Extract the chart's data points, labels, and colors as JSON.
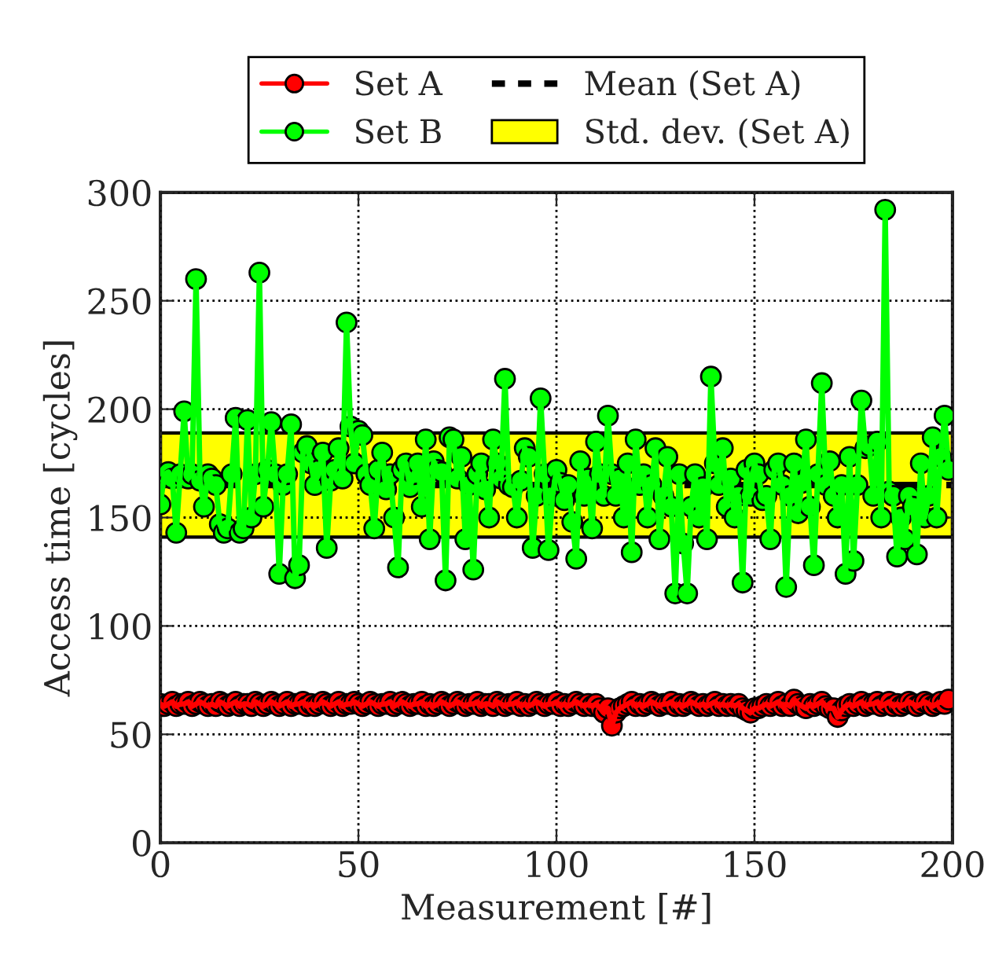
{
  "chart_data": {
    "type": "line",
    "xlabel": "Measurement [#]",
    "ylabel": "Access time [cycles]",
    "x": [
      0,
      1,
      2,
      3,
      4,
      5,
      6,
      7,
      8,
      9,
      10,
      11,
      12,
      13,
      14,
      15,
      16,
      17,
      18,
      19,
      20,
      21,
      22,
      23,
      24,
      25,
      26,
      27,
      28,
      29,
      30,
      31,
      32,
      33,
      34,
      35,
      36,
      37,
      38,
      39,
      40,
      41,
      42,
      43,
      44,
      45,
      46,
      47,
      48,
      49,
      50,
      51,
      52,
      53,
      54,
      55,
      56,
      57,
      58,
      59,
      60,
      61,
      62,
      63,
      64,
      65,
      66,
      67,
      68,
      69,
      70,
      71,
      72,
      73,
      74,
      75,
      76,
      77,
      78,
      79,
      80,
      81,
      82,
      83,
      84,
      85,
      86,
      87,
      88,
      89,
      90,
      91,
      92,
      93,
      94,
      95,
      96,
      97,
      98,
      99,
      100,
      101,
      102,
      103,
      104,
      105,
      106,
      107,
      108,
      109,
      110,
      111,
      112,
      113,
      114,
      115,
      116,
      117,
      118,
      119,
      120,
      121,
      122,
      123,
      124,
      125,
      126,
      127,
      128,
      129,
      130,
      131,
      132,
      133,
      134,
      135,
      136,
      137,
      138,
      139,
      140,
      141,
      142,
      143,
      144,
      145,
      146,
      147,
      148,
      149,
      150,
      151,
      152,
      153,
      154,
      155,
      156,
      157,
      158,
      159,
      160,
      161,
      162,
      163,
      164,
      165,
      166,
      167,
      168,
      169,
      170,
      171,
      172,
      173,
      174,
      175,
      176,
      177,
      178,
      179,
      180,
      181,
      182,
      183,
      184,
      185,
      186,
      187,
      188,
      189,
      190,
      191,
      192,
      193,
      194,
      195,
      196,
      197,
      198,
      199
    ],
    "series": [
      {
        "name": "Set A",
        "color": "#ff0000",
        "values": [
          64,
          63,
          64,
          65,
          63,
          64,
          64,
          65,
          63,
          64,
          65,
          64,
          63,
          64,
          63,
          65,
          64,
          63,
          64,
          65,
          63,
          64,
          64,
          63,
          65,
          64,
          63,
          64,
          65,
          64,
          63,
          64,
          65,
          63,
          64,
          64,
          65,
          63,
          64,
          63,
          64,
          65,
          64,
          63,
          64,
          65,
          63,
          64,
          64,
          65,
          64,
          63,
          64,
          65,
          64,
          63,
          64,
          64,
          65,
          63,
          64,
          65,
          64,
          63,
          64,
          64,
          65,
          63,
          64,
          63,
          64,
          65,
          64,
          63,
          64,
          65,
          64,
          63,
          64,
          64,
          65,
          63,
          64,
          64,
          63,
          65,
          64,
          63,
          64,
          64,
          65,
          63,
          64,
          63,
          64,
          65,
          64,
          63,
          64,
          64,
          65,
          63,
          64,
          63,
          64,
          65,
          64,
          63,
          64,
          63,
          64,
          62,
          60,
          62,
          54,
          60,
          62,
          63,
          64,
          65,
          63,
          64,
          63,
          64,
          65,
          64,
          63,
          64,
          64,
          65,
          63,
          64,
          63,
          64,
          65,
          64,
          63,
          64,
          63,
          64,
          65,
          63,
          64,
          63,
          64,
          63,
          64,
          62,
          61,
          60,
          62,
          62,
          63,
          64,
          63,
          64,
          65,
          63,
          64,
          63,
          66,
          64,
          63,
          62,
          64,
          63,
          64,
          65,
          63,
          62,
          62,
          58,
          61,
          63,
          64,
          63,
          64,
          65,
          63,
          64,
          64,
          65,
          63,
          64,
          65,
          63,
          64,
          63,
          64,
          65,
          64,
          63,
          64,
          65,
          64,
          63,
          64,
          65,
          64,
          66
        ]
      },
      {
        "name": "Set B",
        "color": "#00ff00",
        "values": [
          156,
          170,
          171,
          168,
          143,
          170,
          199,
          168,
          170,
          260,
          167,
          155,
          170,
          168,
          165,
          147,
          143,
          145,
          170,
          196,
          143,
          145,
          195,
          150,
          170,
          263,
          155,
          172,
          194,
          170,
          124,
          165,
          170,
          193,
          122,
          128,
          180,
          183,
          175,
          165,
          172,
          180,
          136,
          167,
          172,
          182,
          168,
          240,
          192,
          175,
          190,
          188,
          170,
          165,
          145,
          172,
          180,
          163,
          170,
          150,
          127,
          172,
          175,
          164,
          170,
          175,
          155,
          186,
          140,
          176,
          172,
          171,
          121,
          187,
          186,
          168,
          178,
          140,
          165,
          126,
          170,
          175,
          163,
          150,
          186,
          175,
          168,
          214,
          165,
          164,
          150,
          167,
          182,
          178,
          136,
          160,
          205,
          170,
          135,
          160,
          172,
          166,
          158,
          165,
          148,
          131,
          176,
          160,
          168,
          145,
          185,
          170,
          160,
          197,
          170,
          160,
          168,
          150,
          175,
          134,
          186,
          165,
          170,
          150,
          165,
          182,
          140,
          160,
          178,
          155,
          115,
          170,
          138,
          115,
          155,
          170,
          150,
          164,
          140,
          215,
          175,
          165,
          182,
          155,
          168,
          150,
          160,
          120,
          172,
          160,
          175,
          170,
          158,
          160,
          140,
          172,
          175,
          165,
          118,
          160,
          175,
          152,
          166,
          186,
          155,
          128,
          170,
          212,
          165,
          176,
          160,
          150,
          165,
          124,
          178,
          130,
          165,
          204,
          182,
          183,
          160,
          185,
          150,
          292,
          162,
          160,
          132,
          150,
          140,
          160,
          155,
          133,
          175,
          150,
          160,
          187,
          150,
          178,
          197,
          172
        ]
      }
    ],
    "ref_lines": [
      {
        "axis": "y",
        "value": 165,
        "label": "Mean (Set A)",
        "color": "#000000",
        "line_style": "dashed"
      }
    ],
    "bands": [
      {
        "axis": "y",
        "from": 141,
        "to": 189,
        "label": "Std. dev. (Set A)",
        "color": "#ffff00"
      }
    ],
    "xlim": [
      0,
      200
    ],
    "xticks": [
      0,
      50,
      100,
      150,
      200
    ],
    "ylim": [
      0,
      300
    ],
    "yticks": [
      0,
      50,
      100,
      150,
      200,
      250,
      300
    ],
    "grid": true,
    "legend": "top",
    "marker": "circle",
    "line_style": "solid"
  }
}
